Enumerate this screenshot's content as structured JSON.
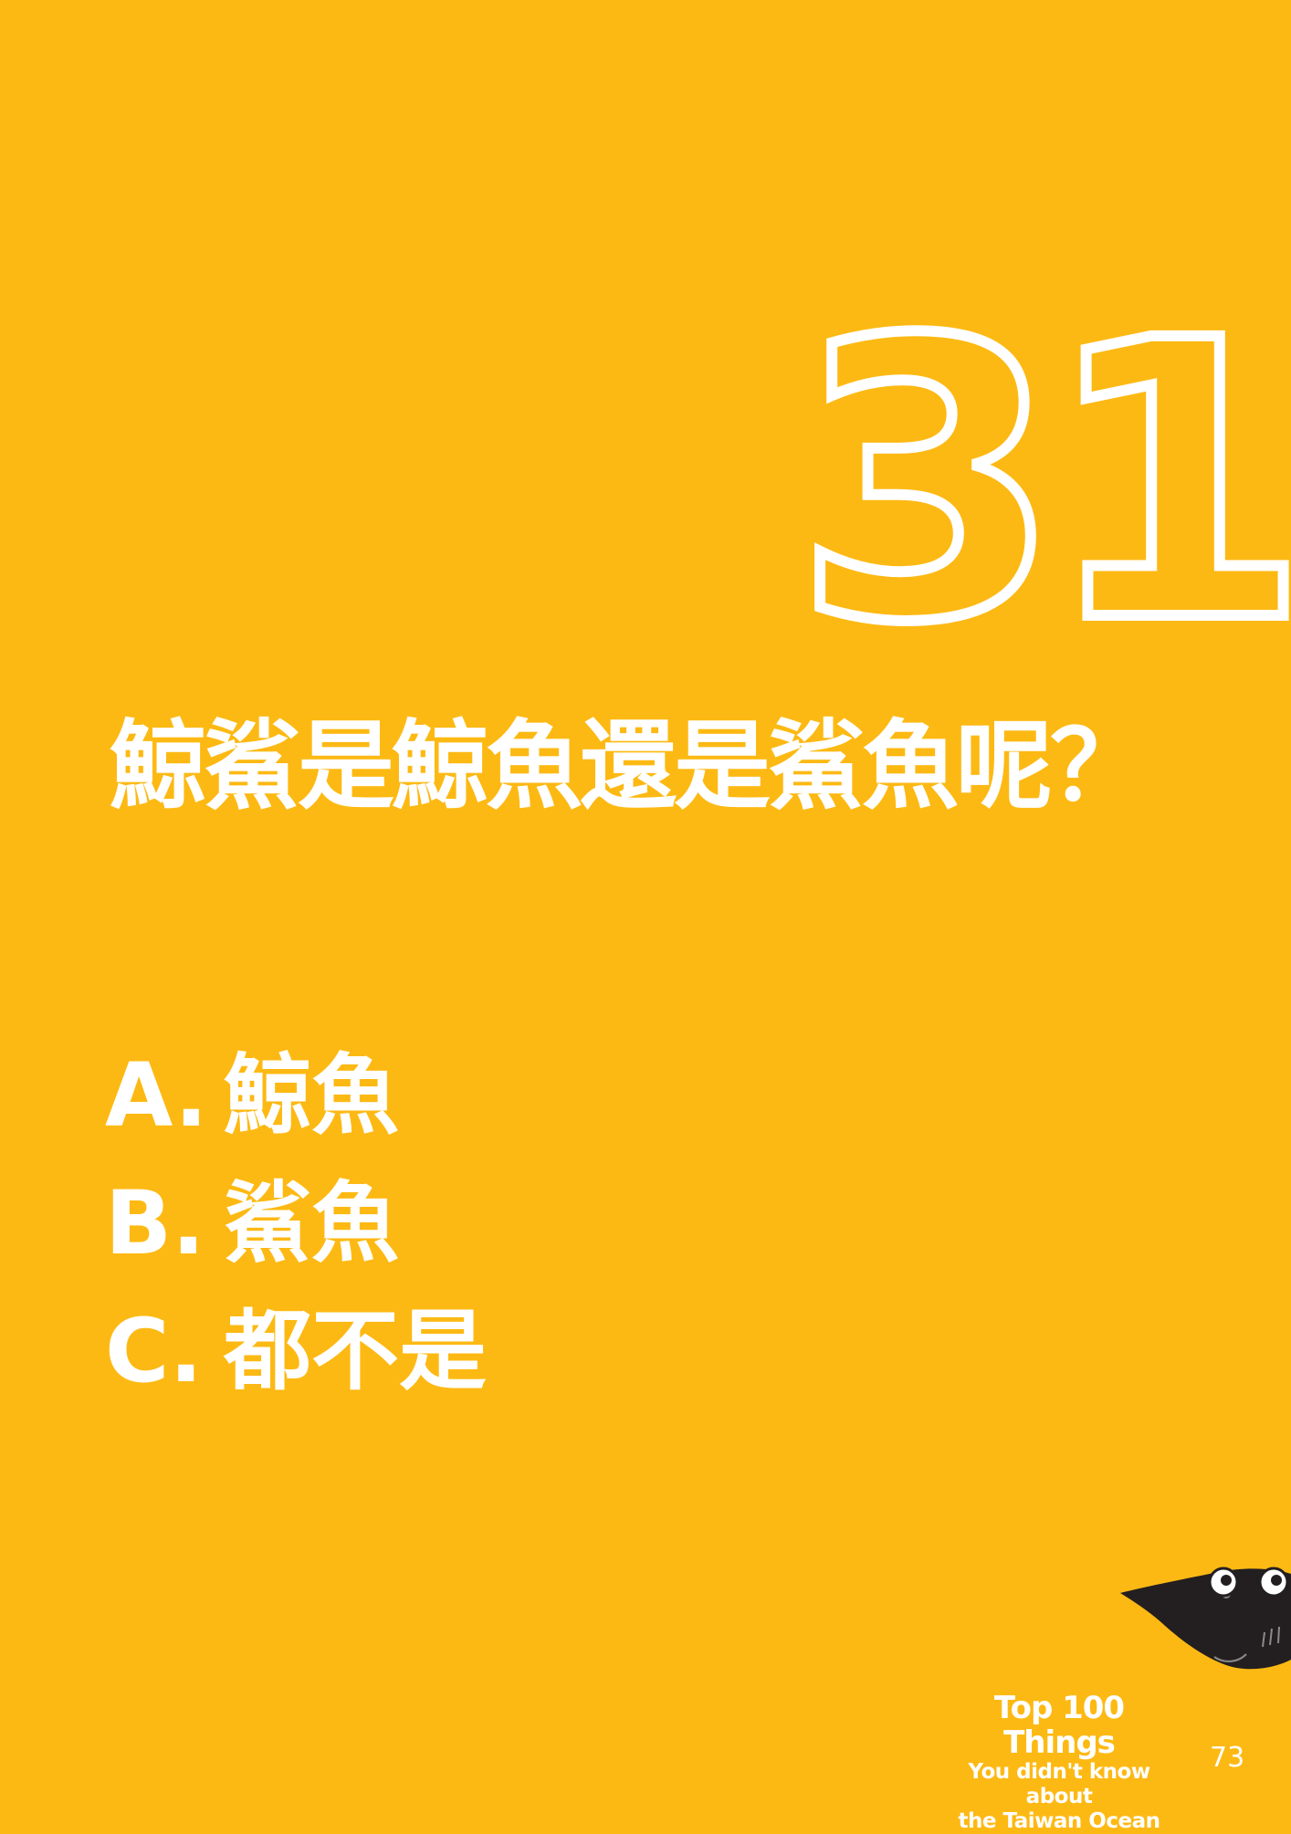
{
  "page": {
    "background_color": "#FDB913",
    "text_color": "#FFFFFF"
  },
  "quiz": {
    "number": "31",
    "question": "鯨鯊是鯨魚還是鯊魚呢？",
    "options": [
      {
        "letter": "A.",
        "text": "鯨魚"
      },
      {
        "letter": "B.",
        "text": "鯊魚"
      },
      {
        "letter": "C.",
        "text": "都不是"
      }
    ]
  },
  "footer": {
    "brand_line1": "Top 100 Things",
    "brand_line2": "You didn't know about",
    "brand_line3": "the Taiwan Ocean",
    "page_number": "73",
    "mascot_icon": "manta-ray-icon"
  }
}
